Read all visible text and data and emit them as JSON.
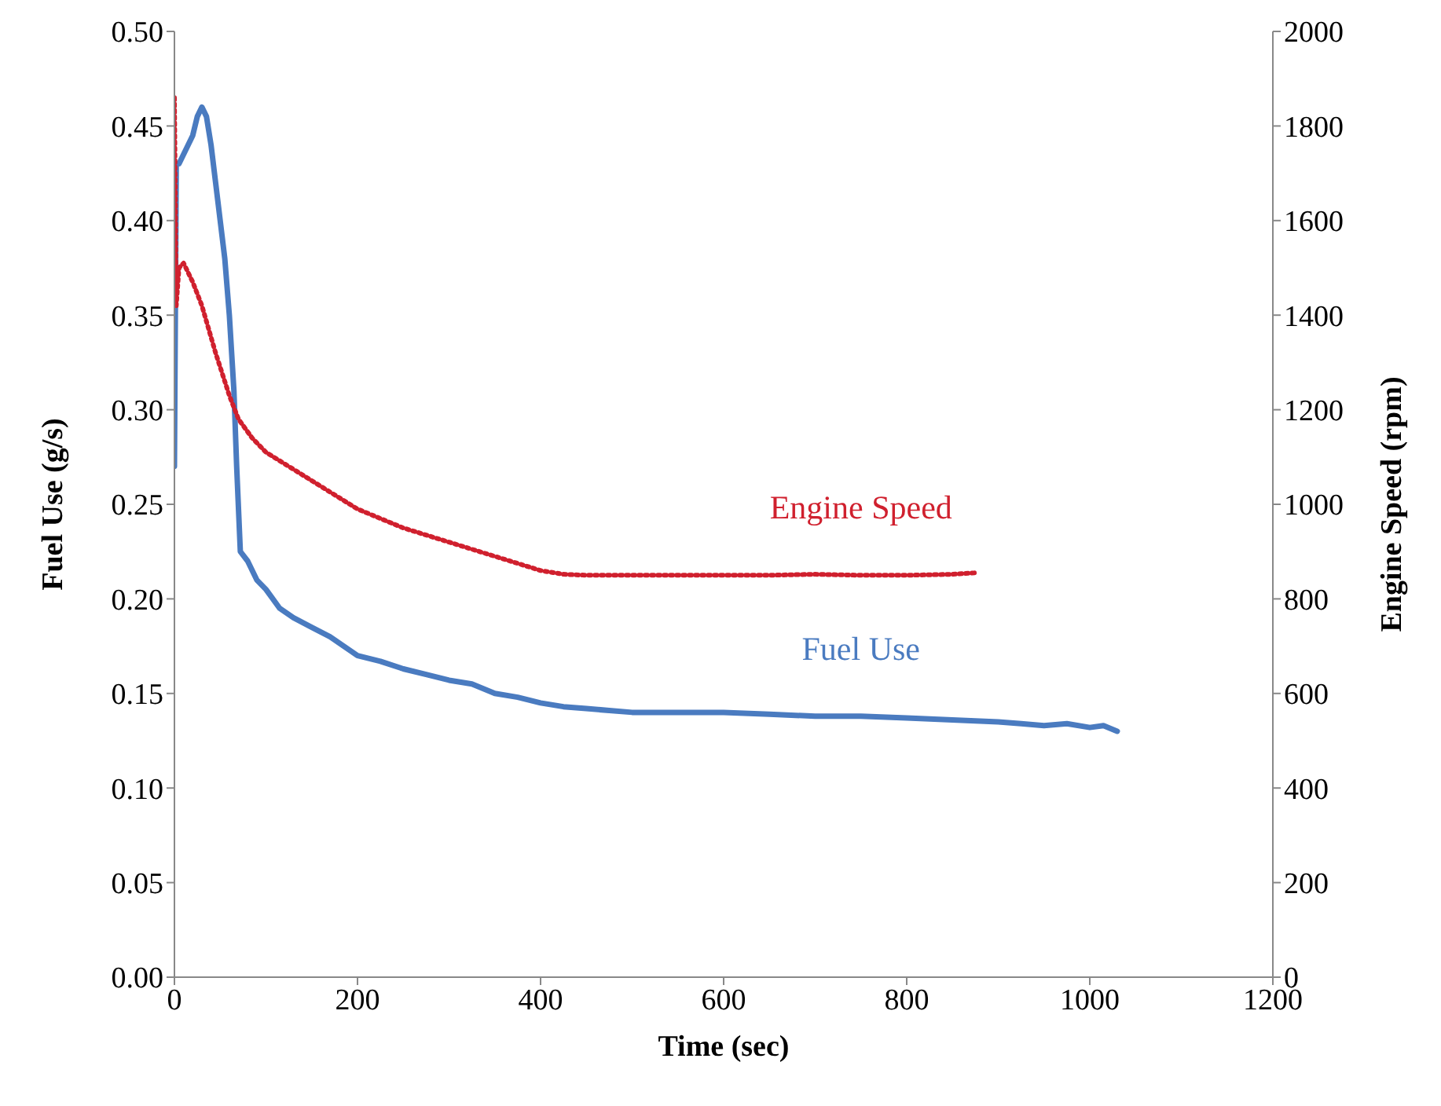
{
  "chart_data": {
    "type": "line",
    "xlabel": "Time (sec)",
    "ylabel": "Fuel Use (g/s)",
    "y2label": "Engine Speed (rpm)",
    "xlim": [
      0,
      1200
    ],
    "xticks": [
      0,
      200,
      400,
      600,
      800,
      1000,
      1200
    ],
    "ylim": [
      0,
      0.5
    ],
    "yticks": [
      {
        "value": 0,
        "label": "0.00"
      },
      {
        "value": 0.05,
        "label": "0.05"
      },
      {
        "value": 0.1,
        "label": "0.10"
      },
      {
        "value": 0.15,
        "label": "0.15"
      },
      {
        "value": 0.2,
        "label": "0.20"
      },
      {
        "value": 0.25,
        "label": "0.25"
      },
      {
        "value": 0.3,
        "label": "0.30"
      },
      {
        "value": 0.35,
        "label": "0.35"
      },
      {
        "value": 0.4,
        "label": "0.40"
      },
      {
        "value": 0.45,
        "label": "0.45"
      },
      {
        "value": 0.5,
        "label": "0.50"
      }
    ],
    "y2lim": [
      0,
      2000
    ],
    "y2ticks": [
      0,
      200,
      400,
      600,
      800,
      1000,
      1200,
      1400,
      1600,
      1800,
      2000
    ],
    "grid": false,
    "legend": false,
    "marker": "none",
    "series": [
      {
        "name": "Fuel Use",
        "color": "#4a7bc0",
        "line_style": "solid",
        "x": [
          0,
          2,
          5,
          10,
          15,
          20,
          25,
          30,
          35,
          40,
          45,
          50,
          55,
          60,
          65,
          68,
          72,
          80,
          90,
          100,
          115,
          130,
          150,
          170,
          185,
          200,
          225,
          250,
          275,
          300,
          325,
          350,
          375,
          400,
          425,
          450,
          475,
          500,
          550,
          600,
          650,
          700,
          750,
          800,
          850,
          900,
          925,
          950,
          975,
          1000,
          1015,
          1030
        ],
        "values": [
          0.27,
          0.43,
          0.43,
          0.435,
          0.44,
          0.445,
          0.455,
          0.46,
          0.455,
          0.44,
          0.42,
          0.4,
          0.38,
          0.35,
          0.31,
          0.27,
          0.225,
          0.22,
          0.21,
          0.205,
          0.195,
          0.19,
          0.185,
          0.18,
          0.175,
          0.17,
          0.167,
          0.163,
          0.16,
          0.157,
          0.155,
          0.15,
          0.148,
          0.145,
          0.143,
          0.142,
          0.141,
          0.14,
          0.14,
          0.14,
          0.139,
          0.138,
          0.138,
          0.137,
          0.136,
          0.135,
          0.134,
          0.133,
          0.134,
          0.132,
          0.133,
          0.13
        ]
      },
      {
        "name": "Engine Speed",
        "color": "#d0202e",
        "line_style": "dotted",
        "axis": "y2",
        "x": [
          0,
          2,
          5,
          10,
          20,
          30,
          45,
          60,
          70,
          85,
          100,
          125,
          150,
          175,
          200,
          225,
          250,
          275,
          300,
          325,
          350,
          375,
          400,
          425,
          450,
          500,
          550,
          600,
          650,
          700,
          750,
          800,
          850,
          875
        ],
        "values": [
          1860,
          1420,
          1500,
          1510,
          1470,
          1420,
          1320,
          1230,
          1180,
          1140,
          1110,
          1080,
          1050,
          1020,
          990,
          970,
          950,
          935,
          920,
          905,
          890,
          875,
          860,
          852,
          850,
          850,
          850,
          850,
          850,
          852,
          850,
          850,
          852,
          855
        ]
      }
    ]
  }
}
